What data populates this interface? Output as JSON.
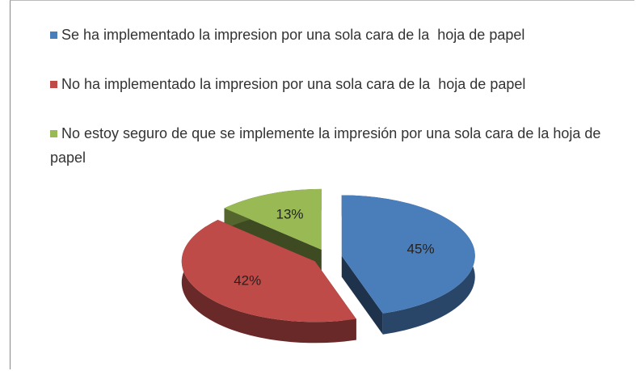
{
  "chart_data": {
    "type": "pie",
    "categories": [
      "Se ha implementado la impresion por una sola cara de la  hoja de papel",
      "No ha implementado la impresion por una sola cara de la  hoja de papel",
      "No estoy seguro de que se implemente la impresión por una sola cara de la hoja de papel"
    ],
    "values": [
      45,
      42,
      13
    ],
    "value_labels": [
      "45%",
      "42%",
      "13%"
    ],
    "colors": [
      "#4a7ebb",
      "#be4b48",
      "#98b954"
    ],
    "exploded": true,
    "three_d": true
  }
}
